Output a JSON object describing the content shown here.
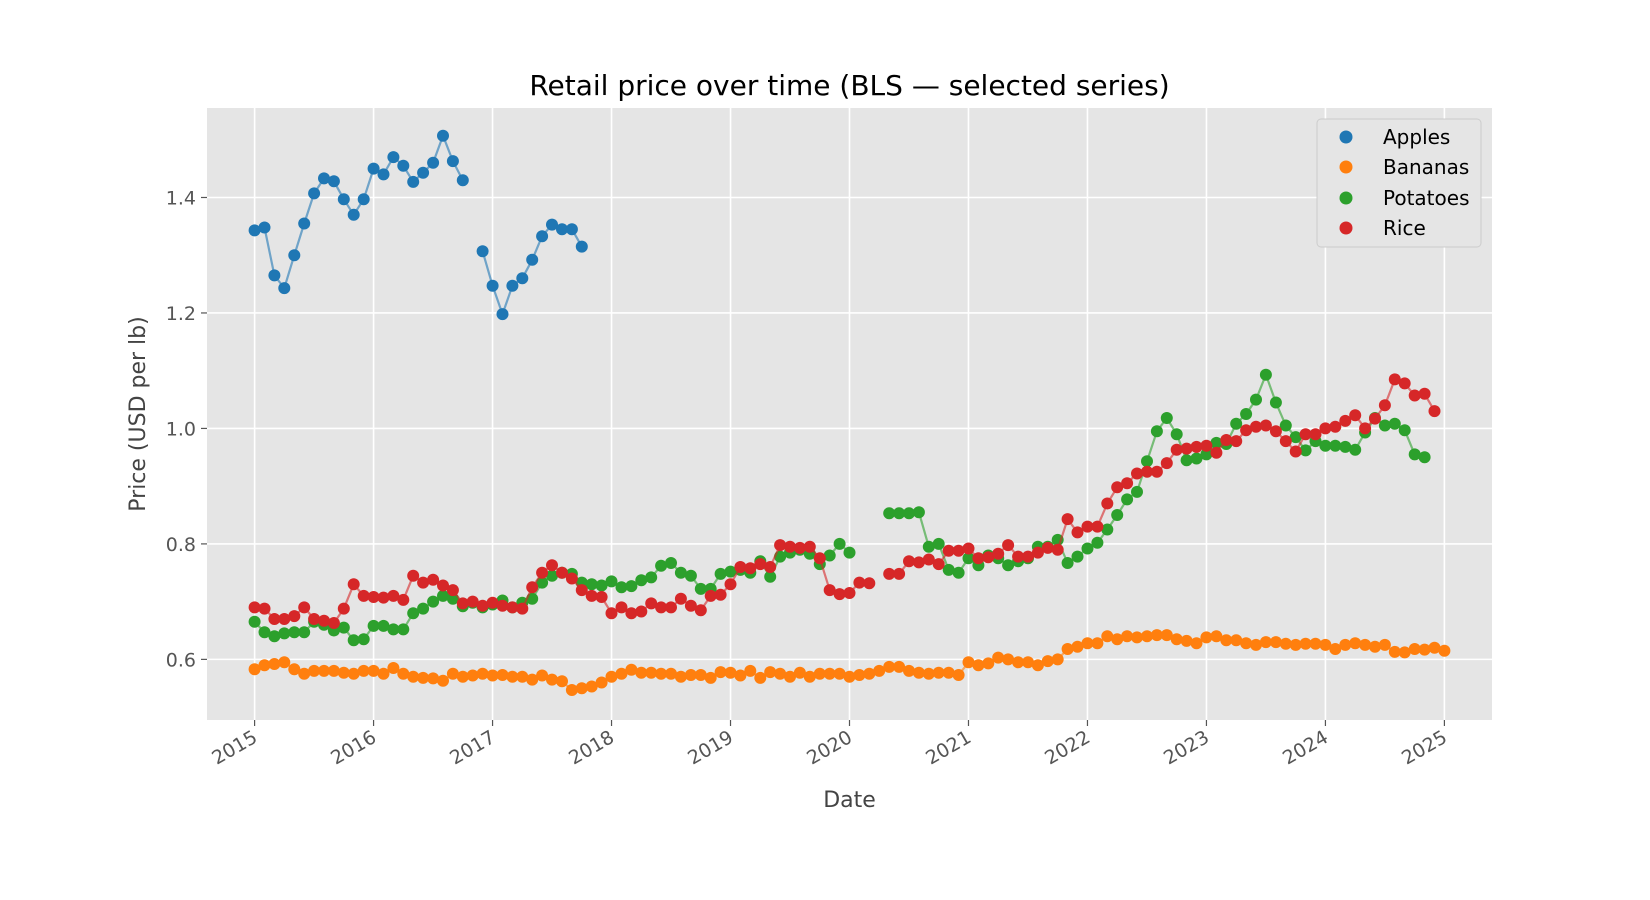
{
  "chart_data": {
    "type": "line",
    "title": "Retail price over time (BLS — selected series)",
    "xlabel": "Date",
    "ylabel": "Price (USD per lb)",
    "x_range": [
      2014.6,
      2025.4
    ],
    "ylim": [
      0.495,
      1.555
    ],
    "x_ticks": [
      "2015",
      "2016",
      "2017",
      "2018",
      "2019",
      "2020",
      "2021",
      "2022",
      "2023",
      "2024",
      "2025"
    ],
    "y_ticks": [
      "0.6",
      "0.8",
      "1.0",
      "1.2",
      "1.4"
    ],
    "grid": true,
    "legend_position": "top-right",
    "series": [
      {
        "name": "Apples",
        "color": "#1f77b4",
        "start_year": 2015,
        "values": [
          1.343,
          1.348,
          1.265,
          1.243,
          1.3,
          1.355,
          1.407,
          1.433,
          1.428,
          1.397,
          1.37,
          1.397,
          1.45,
          1.44,
          1.47,
          1.455,
          1.427,
          1.443,
          1.46,
          1.507,
          1.463,
          1.43,
          null,
          1.307,
          1.247,
          1.198,
          1.247,
          1.26,
          1.292,
          1.333,
          1.353,
          1.345,
          1.345,
          1.315
        ]
      },
      {
        "name": "Bananas",
        "color": "#ff7f0e",
        "start_year": 2015,
        "values": [
          0.583,
          0.59,
          0.592,
          0.595,
          0.583,
          0.575,
          0.58,
          0.58,
          0.58,
          0.577,
          0.575,
          0.58,
          0.58,
          0.575,
          0.585,
          0.575,
          0.57,
          0.568,
          0.567,
          0.563,
          0.575,
          0.57,
          0.572,
          0.575,
          0.572,
          0.573,
          0.57,
          0.57,
          0.565,
          0.572,
          0.565,
          0.562,
          0.547,
          0.55,
          0.553,
          0.56,
          0.57,
          0.575,
          0.582,
          0.577,
          0.577,
          0.575,
          0.575,
          0.57,
          0.573,
          0.573,
          0.568,
          0.578,
          0.577,
          0.572,
          0.58,
          0.568,
          0.578,
          0.575,
          0.57,
          0.577,
          0.57,
          0.575,
          0.575,
          0.575,
          0.57,
          0.573,
          0.575,
          0.58,
          0.587,
          0.587,
          0.58,
          0.577,
          0.575,
          0.577,
          0.577,
          0.573,
          0.595,
          0.59,
          0.593,
          0.603,
          0.6,
          0.595,
          0.595,
          0.59,
          0.597,
          0.6,
          0.618,
          0.622,
          0.628,
          0.628,
          0.64,
          0.635,
          0.64,
          0.638,
          0.64,
          0.642,
          0.642,
          0.635,
          0.632,
          0.628,
          0.638,
          0.64,
          0.633,
          0.633,
          0.628,
          0.625,
          0.63,
          0.63,
          0.627,
          0.625,
          0.627,
          0.627,
          0.625,
          0.618,
          0.625,
          0.628,
          0.625,
          0.622,
          0.625,
          0.613,
          0.612,
          0.618,
          0.617,
          0.62,
          0.615
        ]
      },
      {
        "name": "Potatoes",
        "color": "#2ca02c",
        "start_year": 2015,
        "values": [
          0.665,
          0.647,
          0.64,
          0.645,
          0.647,
          0.647,
          0.665,
          0.66,
          0.65,
          0.655,
          0.633,
          0.635,
          0.658,
          0.658,
          0.652,
          0.652,
          0.68,
          0.688,
          0.7,
          0.71,
          0.705,
          0.692,
          0.698,
          0.69,
          0.695,
          0.702,
          0.69,
          0.698,
          0.705,
          0.733,
          0.745,
          0.75,
          0.748,
          0.733,
          0.73,
          0.728,
          0.735,
          0.725,
          0.727,
          0.737,
          0.742,
          0.762,
          0.767,
          0.75,
          0.745,
          0.722,
          0.722,
          0.748,
          0.752,
          0.755,
          0.75,
          0.77,
          0.743,
          0.778,
          0.785,
          0.79,
          0.783,
          0.765,
          0.78,
          0.8,
          0.785,
          null,
          null,
          null,
          0.853,
          0.853,
          0.853,
          0.855,
          0.795,
          0.8,
          0.755,
          0.75,
          0.775,
          0.763,
          0.78,
          0.775,
          0.763,
          0.77,
          0.775,
          0.795,
          0.795,
          0.807,
          0.767,
          0.778,
          0.792,
          0.802,
          0.825,
          0.85,
          0.877,
          0.89,
          0.943,
          0.995,
          1.018,
          0.99,
          0.945,
          0.948,
          0.955,
          0.975,
          0.973,
          1.008,
          1.025,
          1.05,
          1.093,
          1.045,
          1.005,
          0.985,
          0.962,
          0.978,
          0.97,
          0.97,
          0.968,
          0.963,
          0.993,
          1.018,
          1.005,
          1.008,
          0.997,
          0.955,
          0.95
        ]
      },
      {
        "name": "Rice",
        "color": "#d62728",
        "start_year": 2015,
        "values": [
          0.69,
          0.688,
          0.67,
          0.67,
          0.675,
          0.69,
          0.67,
          0.667,
          0.663,
          0.688,
          0.73,
          0.71,
          0.708,
          0.707,
          0.71,
          0.703,
          0.745,
          0.733,
          0.738,
          0.728,
          0.72,
          0.697,
          0.7,
          0.693,
          0.698,
          0.693,
          0.69,
          0.688,
          0.725,
          0.75,
          0.763,
          0.75,
          0.74,
          0.72,
          0.71,
          0.708,
          0.68,
          0.69,
          0.68,
          0.683,
          0.697,
          0.69,
          0.69,
          0.705,
          0.693,
          0.685,
          0.71,
          0.712,
          0.73,
          0.76,
          0.758,
          0.765,
          0.76,
          0.798,
          0.795,
          0.793,
          0.795,
          0.775,
          0.72,
          0.713,
          0.715,
          0.733,
          0.732,
          null,
          0.748,
          0.748,
          0.77,
          0.768,
          0.773,
          0.765,
          0.788,
          0.788,
          0.792,
          0.775,
          0.777,
          0.783,
          0.798,
          0.778,
          0.778,
          0.785,
          0.793,
          0.79,
          0.843,
          0.82,
          0.83,
          0.83,
          0.87,
          0.898,
          0.905,
          0.922,
          0.925,
          0.925,
          0.94,
          0.963,
          0.965,
          0.968,
          0.97,
          0.958,
          0.98,
          0.978,
          0.997,
          1.003,
          1.005,
          0.995,
          0.978,
          0.96,
          0.99,
          0.99,
          1.0,
          1.003,
          1.013,
          1.023,
          1.0,
          1.017,
          1.04,
          1.085,
          1.078,
          1.057,
          1.06,
          1.03
        ]
      }
    ]
  }
}
